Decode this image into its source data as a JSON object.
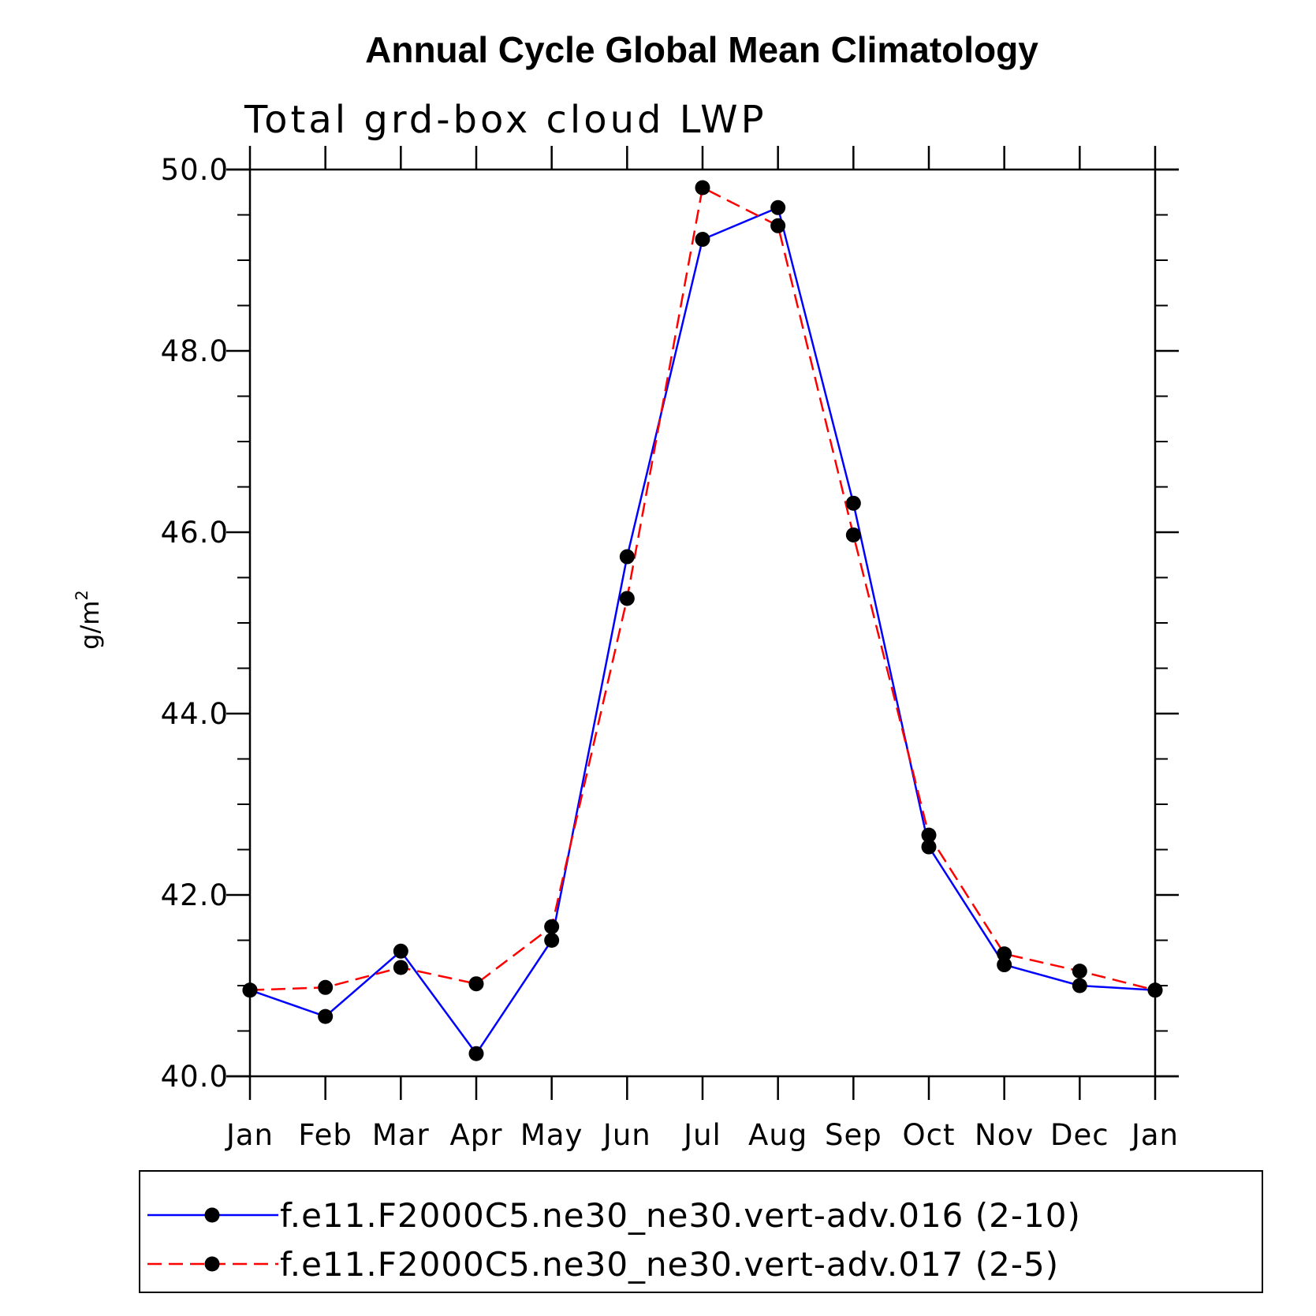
{
  "chart_data": {
    "type": "line",
    "title": "Annual Cycle Global Mean Climatology",
    "subtitle": "Total grd-box cloud LWP",
    "xlabel": "",
    "ylabel": "g/m",
    "ylabel_superscript": "2",
    "ylim": [
      40.0,
      50.0
    ],
    "yticks": [
      "40.0",
      "42.0",
      "44.0",
      "46.0",
      "48.0",
      "50.0"
    ],
    "categories": [
      "Jan",
      "Feb",
      "Mar",
      "Apr",
      "May",
      "Jun",
      "Jul",
      "Aug",
      "Sep",
      "Oct",
      "Nov",
      "Dec",
      "Jan"
    ],
    "series": [
      {
        "name": "f.e11.F2000C5.ne30_ne30.vert-adv.016 (2-10)",
        "color": "#0000ff",
        "style": "solid",
        "values": [
          40.95,
          40.66,
          41.38,
          40.25,
          41.5,
          45.73,
          49.23,
          49.58,
          46.32,
          42.53,
          41.23,
          41.0,
          40.95
        ]
      },
      {
        "name": "f.e11.F2000C5.ne30_ne30.vert-adv.017 (2-5)",
        "color": "#ff0000",
        "style": "dashed",
        "values": [
          40.95,
          40.98,
          41.2,
          41.02,
          41.65,
          45.27,
          49.8,
          49.38,
          45.97,
          42.66,
          41.35,
          41.16,
          40.95
        ]
      }
    ],
    "legend_position": "bottom",
    "grid": false
  }
}
